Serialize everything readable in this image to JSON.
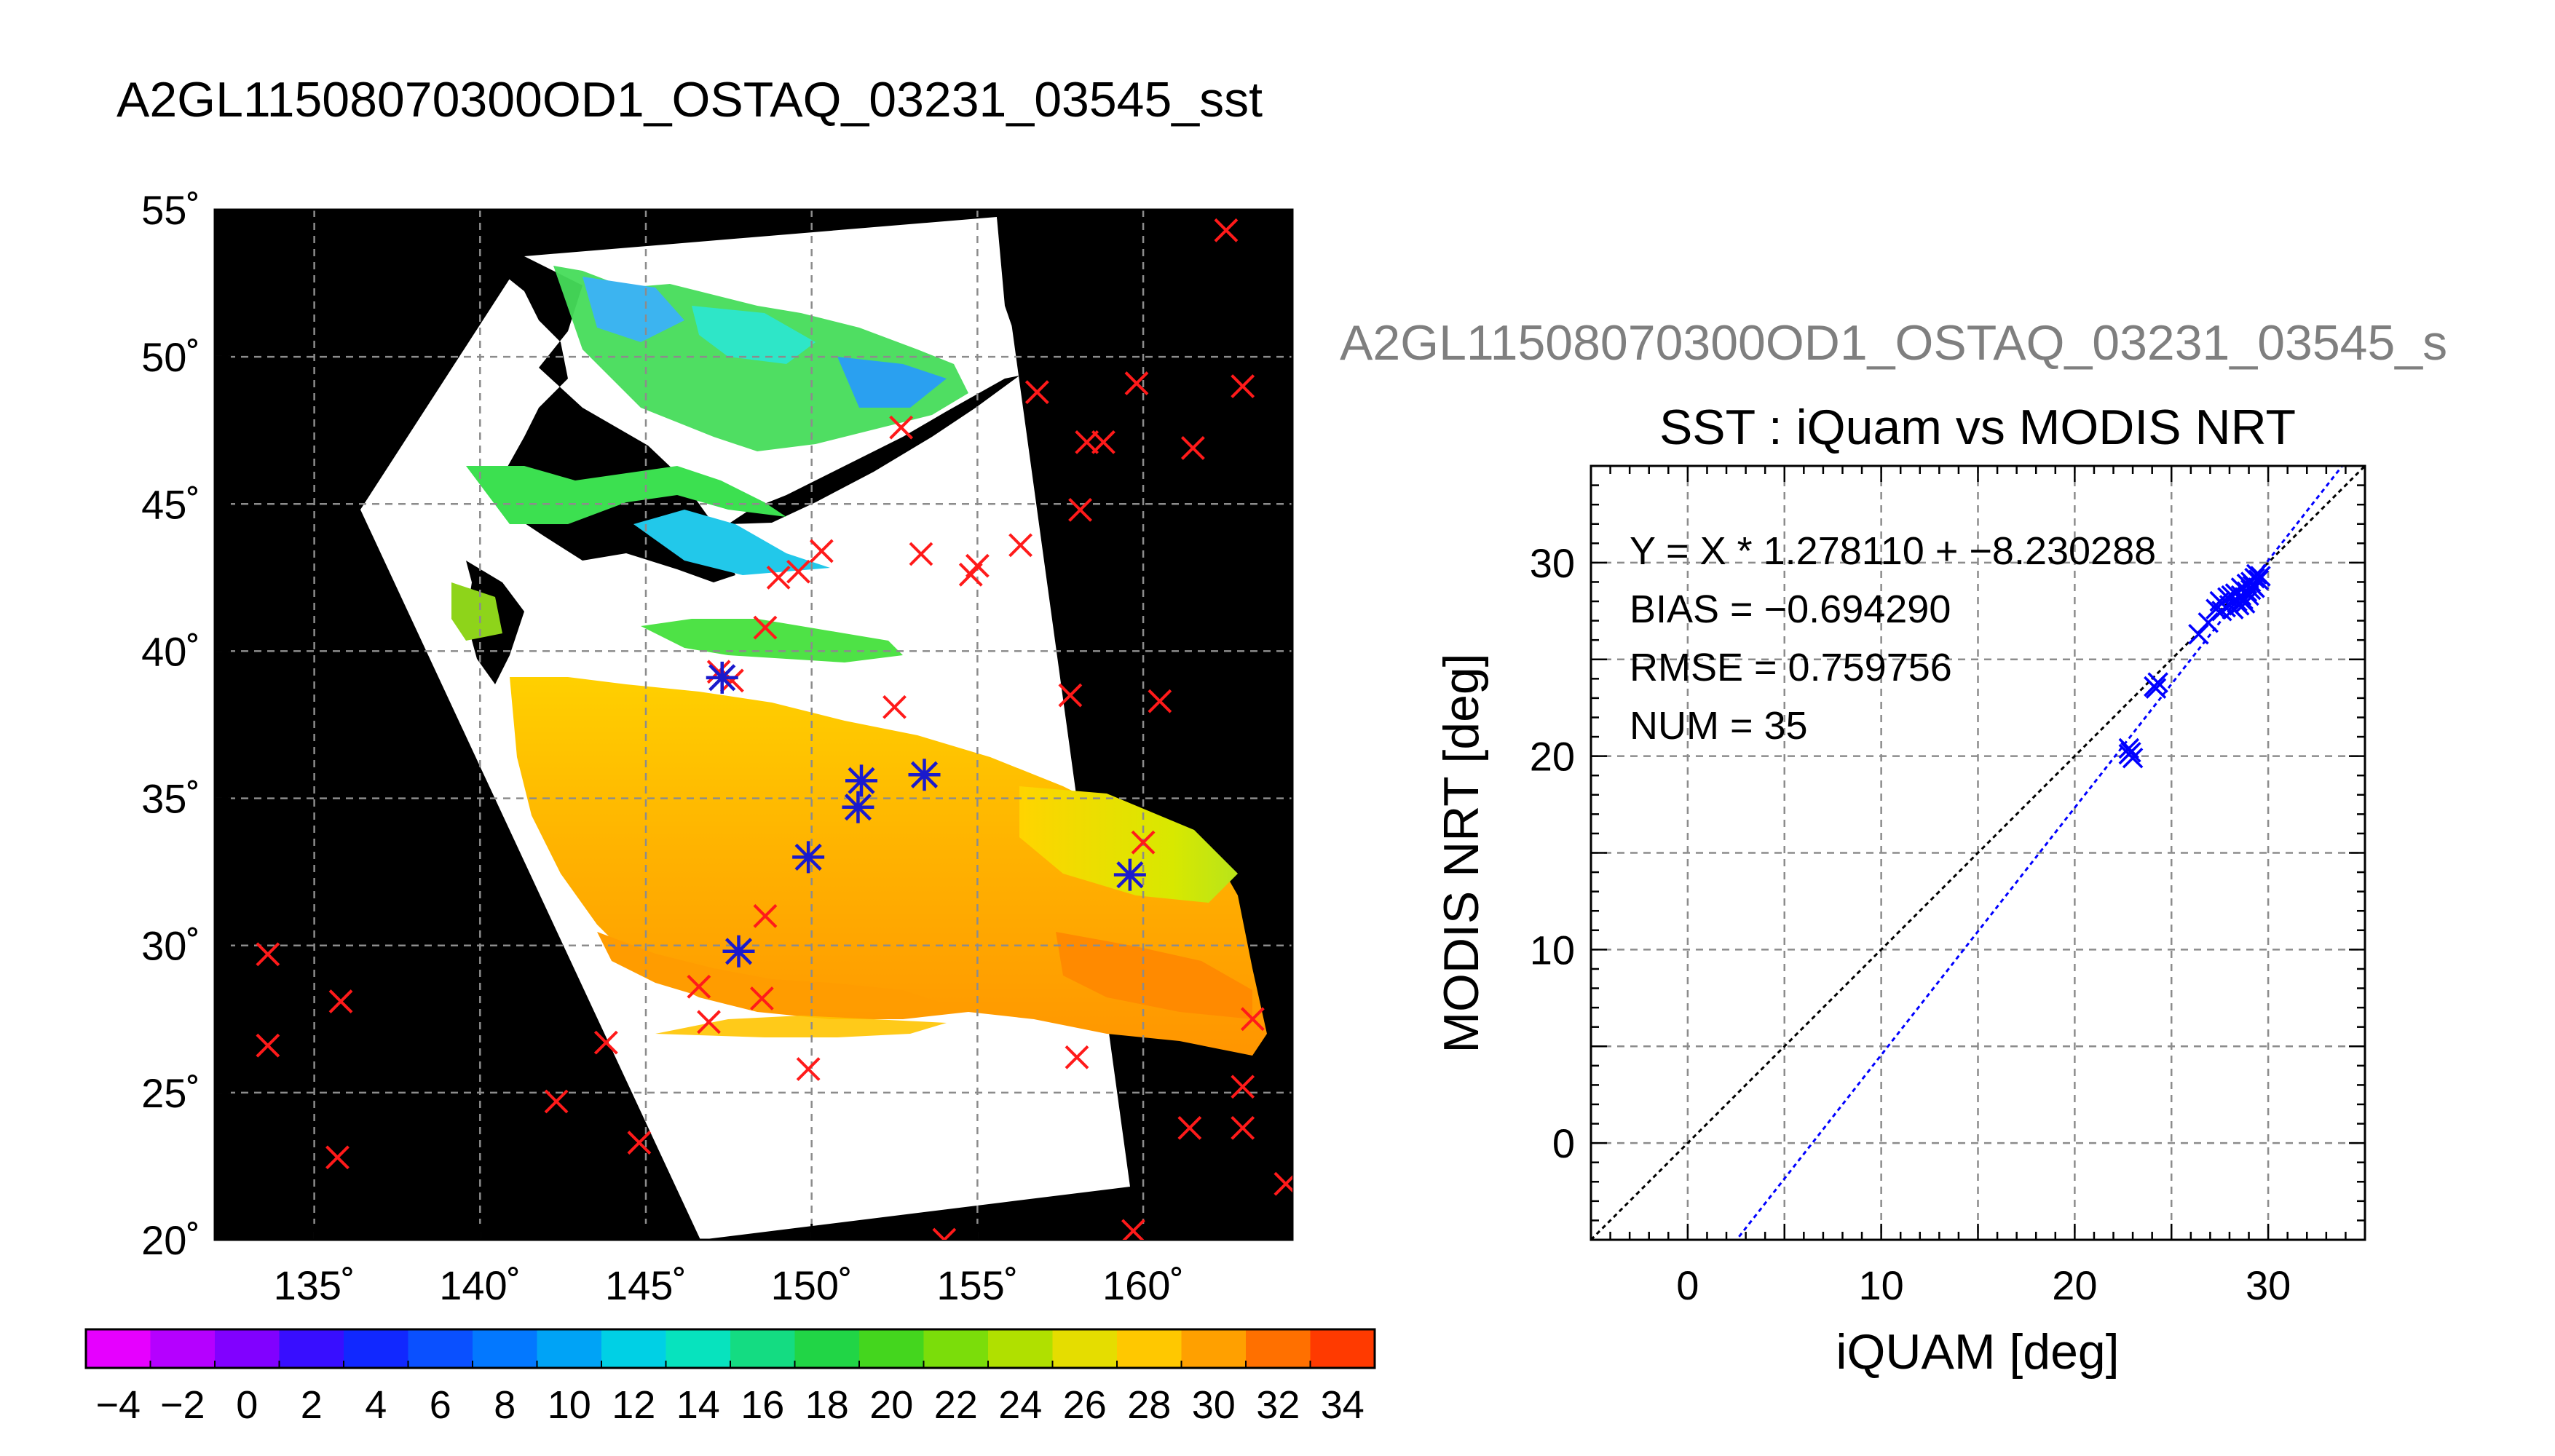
{
  "title": "A2GL11508070300OD1_OSTAQ_03231_03545_sst",
  "right_title": "A2GL11508070300OD1_OSTAQ_03231_03545_s",
  "colors": {
    "land": "#000000",
    "cloud": "#ffffff",
    "match": "#ff1a1a",
    "valid": "#1a1acc",
    "grid": "#8c8c8c",
    "fit": "#0000ff",
    "identity": "#000000"
  },
  "chart_data": [
    {
      "type": "heatmap",
      "title": "A2GL11508070300OD1_OSTAQ_03231_03545_sst",
      "x_ticks": [
        "135˚",
        "140˚",
        "145˚",
        "150˚",
        "155˚",
        "160˚"
      ],
      "y_ticks": [
        "55˚",
        "50˚",
        "45˚",
        "40˚",
        "35˚",
        "30˚",
        "25˚",
        "20˚"
      ],
      "xlim": [
        132.0,
        164.5
      ],
      "ylim": [
        20.0,
        55.0
      ],
      "grid": true,
      "colorbar": {
        "range": [
          -5,
          35
        ],
        "step": 2,
        "tick_labels": [
          "−4",
          "−2",
          "0",
          "2",
          "4",
          "6",
          "8",
          "10",
          "12",
          "14",
          "16",
          "18",
          "20",
          "22",
          "24",
          "26",
          "28",
          "30",
          "32",
          "34"
        ]
      },
      "match_points": [
        [
          162.5,
          54.3
        ],
        [
          163.0,
          49.0
        ],
        [
          161.5,
          46.9
        ],
        [
          159.8,
          49.1
        ],
        [
          158.3,
          47.1
        ],
        [
          158.8,
          47.1
        ],
        [
          158.1,
          44.8
        ],
        [
          156.8,
          48.8
        ],
        [
          156.3,
          43.6
        ],
        [
          155.0,
          42.9
        ],
        [
          154.8,
          42.6
        ],
        [
          153.3,
          43.3
        ],
        [
          150.3,
          43.4
        ],
        [
          149.6,
          42.7
        ],
        [
          149.0,
          42.5
        ],
        [
          148.6,
          40.8
        ],
        [
          147.2,
          39.3
        ],
        [
          147.6,
          39.0
        ],
        [
          152.5,
          38.1
        ],
        [
          152.7,
          47.6
        ],
        [
          157.8,
          38.5
        ],
        [
          160.5,
          38.3
        ],
        [
          151.5,
          35.6
        ],
        [
          153.4,
          35.8
        ],
        [
          151.4,
          34.7
        ],
        [
          149.9,
          33.0
        ],
        [
          159.6,
          32.4
        ],
        [
          160.0,
          33.5
        ],
        [
          148.6,
          31.0
        ],
        [
          147.8,
          29.8
        ],
        [
          148.5,
          28.2
        ],
        [
          146.6,
          28.6
        ],
        [
          146.9,
          27.4
        ],
        [
          149.9,
          25.8
        ],
        [
          158.0,
          26.2
        ],
        [
          163.3,
          27.5
        ],
        [
          163.0,
          25.2
        ],
        [
          161.4,
          23.8
        ],
        [
          163.0,
          23.8
        ],
        [
          164.3,
          21.9
        ],
        [
          159.7,
          20.3
        ],
        [
          154.0,
          20.0
        ],
        [
          133.6,
          29.7
        ],
        [
          133.6,
          26.6
        ],
        [
          135.8,
          28.1
        ],
        [
          135.7,
          22.8
        ],
        [
          142.3,
          24.7
        ],
        [
          143.8,
          26.7
        ],
        [
          144.8,
          23.3
        ]
      ],
      "valid_points": [
        [
          147.3,
          39.1
        ],
        [
          151.5,
          35.6
        ],
        [
          153.4,
          35.8
        ],
        [
          151.4,
          34.7
        ],
        [
          149.9,
          33.0
        ],
        [
          159.6,
          32.4
        ],
        [
          147.8,
          29.8
        ]
      ]
    },
    {
      "type": "scatter",
      "title": "SST : iQuam vs MODIS NRT",
      "xlabel": "iQUAM [deg]",
      "ylabel": "MODIS NRT [deg]",
      "xlim": [
        -5,
        35
      ],
      "ylim": [
        -5,
        35
      ],
      "x_ticks": [
        0,
        10,
        20,
        30
      ],
      "y_ticks": [
        0,
        10,
        20,
        30
      ],
      "grid": true,
      "fit": {
        "slope": 1.27811,
        "intercept": -8.230288
      },
      "annotations": [
        "Y = X * 1.278110 + −8.230288",
        "BIAS = −0.694290",
        "RMSE = 0.759756",
        "NUM = 35"
      ],
      "points": [
        [
          22.8,
          20.4
        ],
        [
          22.9,
          20.2
        ],
        [
          23.0,
          19.9
        ],
        [
          22.8,
          20.1
        ],
        [
          24.1,
          23.6
        ],
        [
          24.3,
          23.8
        ],
        [
          24.2,
          23.5
        ],
        [
          26.4,
          26.3
        ],
        [
          26.9,
          26.9
        ],
        [
          27.3,
          27.6
        ],
        [
          27.5,
          28.0
        ],
        [
          27.6,
          27.5
        ],
        [
          27.8,
          27.7
        ],
        [
          27.9,
          28.2
        ],
        [
          28.0,
          27.8
        ],
        [
          28.1,
          28.3
        ],
        [
          28.2,
          27.6
        ],
        [
          28.3,
          28.4
        ],
        [
          28.4,
          28.0
        ],
        [
          28.5,
          27.8
        ],
        [
          28.6,
          28.3
        ],
        [
          28.6,
          28.7
        ],
        [
          28.7,
          28.1
        ],
        [
          28.8,
          27.9
        ],
        [
          28.9,
          28.5
        ],
        [
          28.9,
          28.9
        ],
        [
          29.0,
          28.3
        ],
        [
          29.1,
          28.6
        ],
        [
          29.1,
          29.0
        ],
        [
          29.2,
          28.8
        ],
        [
          29.3,
          29.2
        ],
        [
          29.3,
          28.7
        ],
        [
          29.4,
          29.4
        ],
        [
          29.5,
          29.1
        ],
        [
          29.6,
          29.3
        ]
      ]
    }
  ]
}
